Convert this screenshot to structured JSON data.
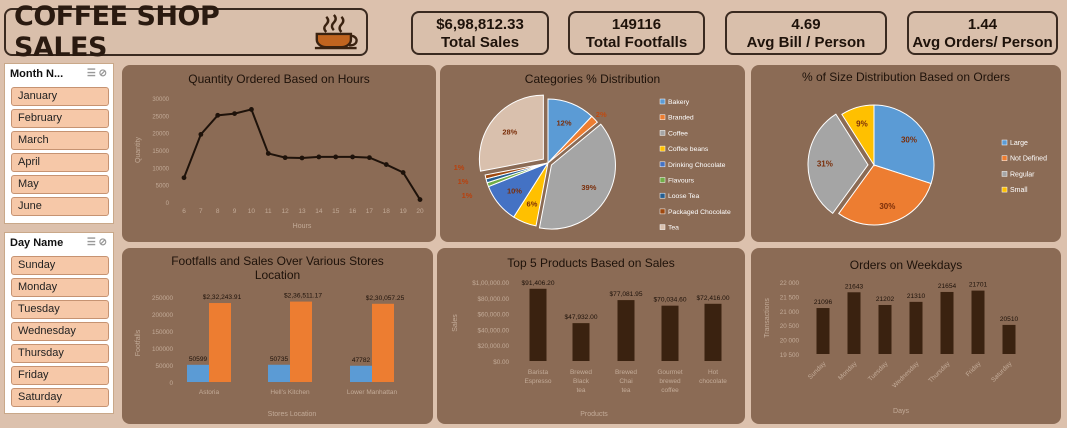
{
  "title": "COFFEE SHOP SALES",
  "kpis": [
    {
      "value": "$6,98,812.33",
      "label": "Total Sales"
    },
    {
      "value": "149116",
      "label": "Total Footfalls"
    },
    {
      "value": "4.69",
      "label": "Avg Bill / Person"
    },
    {
      "value": "1.44",
      "label": "Avg Orders/ Person"
    }
  ],
  "month_slicer": {
    "header": "Month N...",
    "items": [
      "January",
      "February",
      "March",
      "April",
      "May",
      "June"
    ]
  },
  "day_slicer": {
    "header": "Day Name",
    "items": [
      "Sunday",
      "Monday",
      "Tuesday",
      "Wednesday",
      "Thursday",
      "Friday",
      "Saturday"
    ]
  },
  "colors": {
    "bg": "#dcc1ad",
    "panel": "#8b6b55",
    "dark": "#3a2210",
    "orange": "#ed7d31",
    "blue": "#5b9bd5"
  },
  "chart_data": [
    {
      "type": "line",
      "title": "Quantity Ordered Based on Hours",
      "xlabel": "Hours",
      "ylabel": "Quantity",
      "x": [
        6,
        7,
        8,
        9,
        10,
        11,
        12,
        13,
        14,
        15,
        16,
        17,
        18,
        19,
        20
      ],
      "values": [
        7000,
        19500,
        25000,
        25500,
        26700,
        14000,
        12800,
        12700,
        13000,
        13000,
        13000,
        12800,
        10800,
        8500,
        700
      ],
      "yticks": [
        0,
        5000,
        10000,
        15000,
        20000,
        25000,
        30000
      ],
      "ylim": [
        0,
        30000
      ]
    },
    {
      "type": "pie",
      "title": "Categories % Distribution",
      "labels": [
        "Bakery",
        "Branded",
        "Coffee",
        "Coffee beans",
        "Drinking Chocolate",
        "Flavours",
        "Loose Tea",
        "Packaged Chocolate",
        "Tea"
      ],
      "values": [
        12,
        2,
        39,
        6,
        10,
        1,
        1,
        1,
        28
      ],
      "value_labels": [
        "12%",
        "2%",
        "39%",
        "6%",
        "10%",
        "1%",
        "1%",
        "1%",
        "28%"
      ],
      "colors": [
        "#5b9bd5",
        "#ed7d31",
        "#a5a5a5",
        "#ffc000",
        "#4472c4",
        "#70ad47",
        "#255e91",
        "#9e480e",
        "#d9c0ad"
      ]
    },
    {
      "type": "pie",
      "title": "% of Size Distribution Based on Orders",
      "labels": [
        "Large",
        "Not Defined",
        "Regular",
        "Small"
      ],
      "values": [
        30,
        30,
        31,
        9
      ],
      "value_labels": [
        "30%",
        "30%",
        "31%",
        "9%"
      ],
      "colors": [
        "#5b9bd5",
        "#ed7d31",
        "#a5a5a5",
        "#ffc000"
      ]
    },
    {
      "type": "bar",
      "title": "Footfalls and Sales Over Various Stores Location",
      "xlabel": "Stores Location",
      "ylabel": "Footfalls",
      "categories": [
        "Astoria",
        "Hell's Kitchen",
        "Lower Manhattan"
      ],
      "series": [
        {
          "name": "Footfalls",
          "values": [
            50599,
            50735,
            47782
          ],
          "labels": [
            "50599",
            "50735",
            "47782"
          ]
        },
        {
          "name": "Sales",
          "values": [
            232243.91,
            236511.17,
            230057.25
          ],
          "labels": [
            "$2,32,243.91",
            "$2,36,511.17",
            "$2,30,057.25"
          ]
        }
      ],
      "yticks": [
        0,
        50000,
        100000,
        150000,
        200000,
        250000
      ],
      "ylim": [
        0,
        250000
      ]
    },
    {
      "type": "bar",
      "title": "Top 5 Products Based on Sales",
      "xlabel": "Products",
      "ylabel": "Sales",
      "categories": [
        "Barista Espresso",
        "Brewed Black tea",
        "Brewed Chai tea",
        "Gourmet brewed coffee",
        "Hot chocolate"
      ],
      "values": [
        91406.2,
        47932.0,
        77081.95,
        70034.6,
        72416.0
      ],
      "value_labels": [
        "$91,406.20",
        "$47,932.00",
        "$77,081.95",
        "$70,034.60",
        "$72,416.00"
      ],
      "ytick_labels": [
        "$0.00",
        "$20,000.00",
        "$40,000.00",
        "$60,000.00",
        "$80,000.00",
        "$1,00,000.00"
      ],
      "ylim": [
        0,
        100000
      ]
    },
    {
      "type": "bar",
      "title": "Orders on Weekdays",
      "xlabel": "Days",
      "ylabel": "Transactions",
      "categories": [
        "Sunday",
        "Monday",
        "Tuesday",
        "Wednesday",
        "Thursday",
        "Friday",
        "Saturday"
      ],
      "values": [
        21096,
        21643,
        21202,
        21310,
        21654,
        21701,
        20510
      ],
      "value_labels": [
        "21096",
        "21643",
        "21202",
        "21310",
        "21654",
        "21701",
        "20510"
      ],
      "ytick_labels": [
        "19 500",
        "20 000",
        "20 500",
        "21 000",
        "21 500",
        "22 000"
      ],
      "ylim": [
        19500,
        22000
      ]
    }
  ]
}
